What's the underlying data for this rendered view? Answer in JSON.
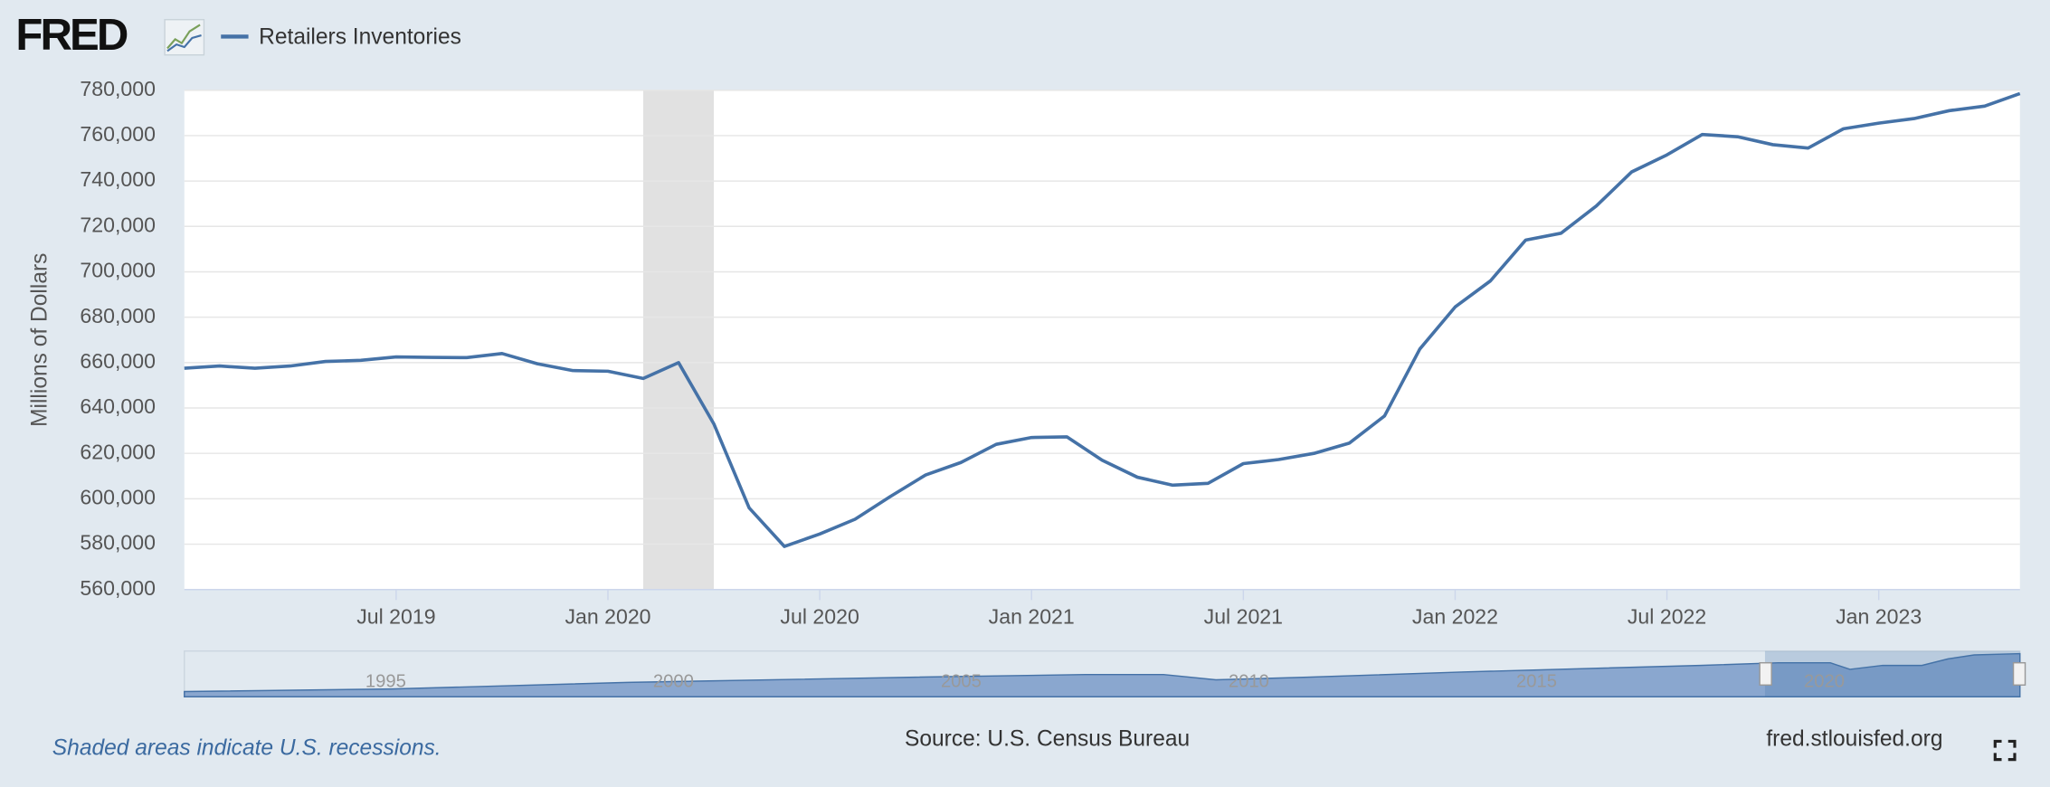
{
  "logo": "FRED",
  "chart_data": {
    "type": "line",
    "x": [
      "2019-01",
      "2019-02",
      "2019-03",
      "2019-04",
      "2019-05",
      "2019-06",
      "2019-07",
      "2019-08",
      "2019-09",
      "2019-10",
      "2019-11",
      "2019-12",
      "2020-01",
      "2020-02",
      "2020-03",
      "2020-04",
      "2020-05",
      "2020-06",
      "2020-07",
      "2020-08",
      "2020-09",
      "2020-10",
      "2020-11",
      "2020-12",
      "2021-01",
      "2021-02",
      "2021-03",
      "2021-04",
      "2021-05",
      "2021-06",
      "2021-07",
      "2021-08",
      "2021-09",
      "2021-10",
      "2021-11",
      "2021-12",
      "2022-01",
      "2022-02",
      "2022-03",
      "2022-04",
      "2022-05",
      "2022-06",
      "2022-07",
      "2022-08",
      "2022-09",
      "2022-10",
      "2022-11",
      "2022-12",
      "2023-01",
      "2023-02",
      "2023-03",
      "2023-04",
      "2023-05"
    ],
    "series": [
      {
        "name": "Retailers Inventories",
        "color": "#4572a7",
        "values": [
          657500,
          658500,
          657500,
          658500,
          660500,
          661000,
          662500,
          662300,
          662200,
          664000,
          659500,
          656500,
          656200,
          653000,
          660000,
          633000,
          596000,
          579000,
          584500,
          591000,
          601000,
          610500,
          616000,
          624000,
          627000,
          627300,
          617000,
          609500,
          606000,
          606800,
          615500,
          617300,
          620000,
          624500,
          636500,
          666000,
          684500,
          696000,
          714000,
          717000,
          729000,
          744000,
          751500,
          760500,
          759500,
          756000,
          754500,
          763000,
          765500,
          767500,
          771000,
          773000,
          778500
        ]
      }
    ],
    "xlim": [
      "2019-01",
      "2023-05"
    ],
    "xticks": [
      {
        "value": "2019-07",
        "label": "Jul 2019"
      },
      {
        "value": "2020-01",
        "label": "Jan 2020"
      },
      {
        "value": "2020-07",
        "label": "Jul 2020"
      },
      {
        "value": "2021-01",
        "label": "Jan 2021"
      },
      {
        "value": "2021-07",
        "label": "Jul 2021"
      },
      {
        "value": "2022-01",
        "label": "Jan 2022"
      },
      {
        "value": "2022-07",
        "label": "Jul 2022"
      },
      {
        "value": "2023-01",
        "label": "Jan 2023"
      }
    ],
    "ylim": [
      560000,
      780000
    ],
    "yticks": [
      {
        "value": 560000,
        "label": "560,000"
      },
      {
        "value": 580000,
        "label": "580,000"
      },
      {
        "value": 600000,
        "label": "600,000"
      },
      {
        "value": 620000,
        "label": "620,000"
      },
      {
        "value": 640000,
        "label": "640,000"
      },
      {
        "value": 660000,
        "label": "660,000"
      },
      {
        "value": 680000,
        "label": "680,000"
      },
      {
        "value": 700000,
        "label": "700,000"
      },
      {
        "value": 720000,
        "label": "720,000"
      },
      {
        "value": 740000,
        "label": "740,000"
      },
      {
        "value": 760000,
        "label": "760,000"
      },
      {
        "value": 780000,
        "label": "780,000"
      }
    ],
    "y_label": "Millions of Dollars",
    "grid": true,
    "recessions": [
      {
        "start": "2020-02",
        "end": "2020-04"
      }
    ],
    "navigator": {
      "xlim": [
        1991.5,
        2023.4
      ],
      "xticks": [
        1995,
        2000,
        2005,
        2010,
        2015,
        2020
      ]
    },
    "recession_note": "Shaded areas indicate U.S. recessions.",
    "source": "Source: U.S. Census Bureau",
    "site": "fred.stlouisfed.org"
  }
}
